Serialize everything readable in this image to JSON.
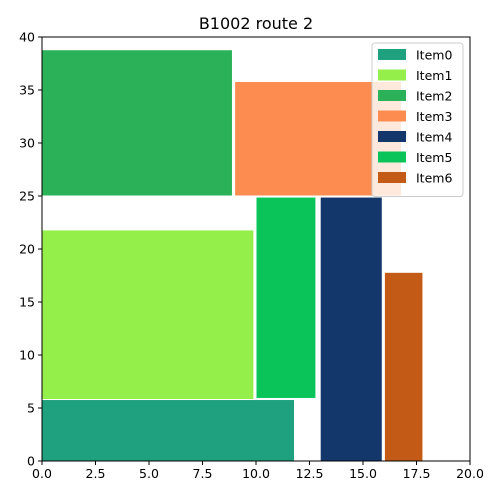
{
  "chart_data": {
    "type": "bar",
    "title": "B1002 route 2",
    "xlabel": "",
    "ylabel": "",
    "xlim": [
      0,
      20
    ],
    "ylim": [
      0,
      40
    ],
    "x_ticks": [
      "0.0",
      "2.5",
      "5.0",
      "7.5",
      "10.0",
      "12.5",
      "15.0",
      "17.5",
      "20.0"
    ],
    "y_ticks": [
      "0",
      "5",
      "10",
      "15",
      "20",
      "25",
      "30",
      "35",
      "40"
    ],
    "grid": false,
    "legend_placement": "top-right",
    "items": [
      {
        "name": "Item0",
        "color": "#1fa07e",
        "x0": 0,
        "x1": 11.8,
        "y0": 0,
        "y1": 5.8
      },
      {
        "name": "Item1",
        "color": "#95ef4b",
        "x0": 0,
        "x1": 9.9,
        "y0": 5.8,
        "y1": 21.8
      },
      {
        "name": "Item2",
        "color": "#2bb158",
        "x0": 0,
        "x1": 8.9,
        "y0": 25,
        "y1": 38.8
      },
      {
        "name": "Item3",
        "color": "#fc8c50",
        "x0": 9.0,
        "x1": 16.8,
        "y0": 25,
        "y1": 35.8
      },
      {
        "name": "Item4",
        "color": "#13376b",
        "x0": 13.0,
        "x1": 15.9,
        "y0": 0,
        "y1": 24.9
      },
      {
        "name": "Item5",
        "color": "#0ac45a",
        "x0": 10.0,
        "x1": 12.8,
        "y0": 5.9,
        "y1": 24.9
      },
      {
        "name": "Item6",
        "color": "#c35a16",
        "x0": 16.0,
        "x1": 17.8,
        "y0": 0,
        "y1": 17.8
      }
    ]
  }
}
